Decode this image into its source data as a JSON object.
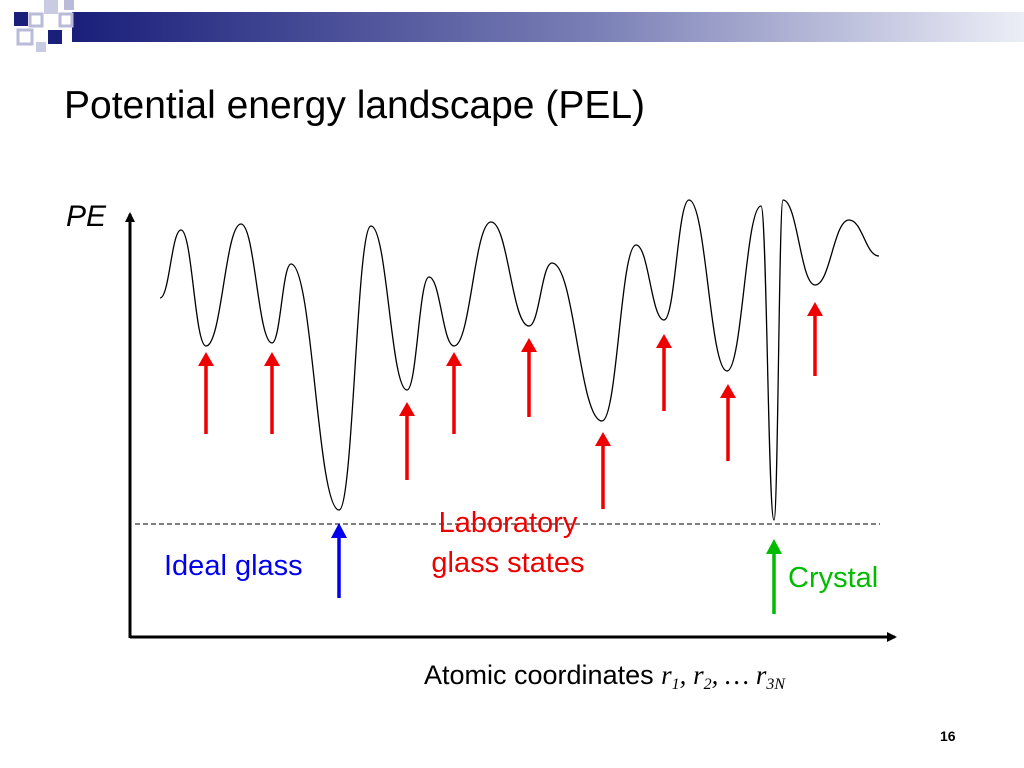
{
  "slide": {
    "title": "Potential energy landscape (PEL)",
    "number": "16"
  },
  "axes": {
    "y_label": "PE",
    "x_label": {
      "prefix": "Atomic coordinates ",
      "r1": "r",
      "r1_sub": "1",
      "sep1": ", ",
      "r2": "r",
      "r2_sub": "2",
      "sep2": ", … ",
      "r3": "r",
      "r3_sub": "3N"
    }
  },
  "labels": {
    "ideal_glass": "Ideal glass",
    "lab_line1": "Laboratory",
    "lab_line2": "glass states",
    "crystal": "Crystal"
  },
  "colors": {
    "ideal_glass": "#0000ee",
    "laboratory_glass": "#ee0000",
    "crystal": "#00bb00",
    "curve": "#000000",
    "header_dark": "#1a1f7a",
    "header_light": "#b9bbd9"
  },
  "icons": {
    "header_squares": "decorative-squares-icon"
  }
}
